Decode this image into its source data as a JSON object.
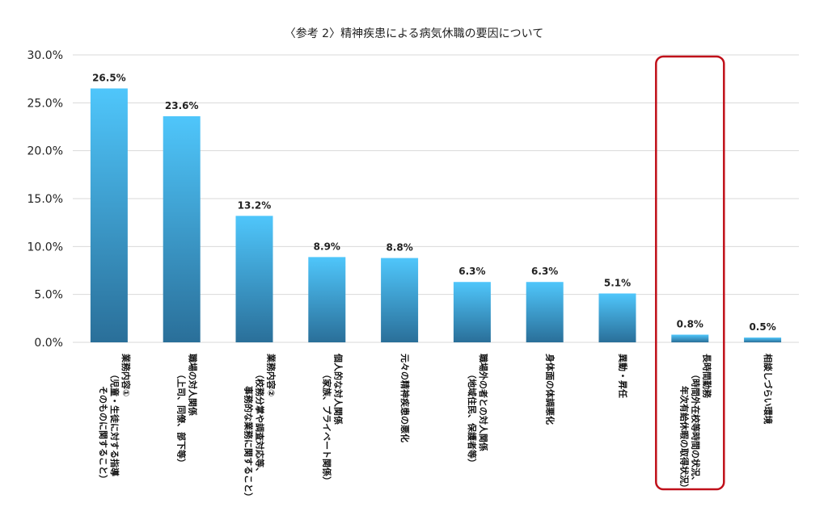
{
  "chart_data": {
    "type": "bar",
    "title": "〈参考 2〉精神疾患による病気休職の要因について",
    "xlabel": "",
    "ylabel": "",
    "ylim": [
      0,
      30
    ],
    "y_ticks": [
      "0.0%",
      "5.0%",
      "10.0%",
      "15.0%",
      "20.0%",
      "25.0%",
      "30.0%"
    ],
    "grid": true,
    "categories": [
      [
        "業務内容①",
        "（児童・生徒に対する指導",
        "そのものに関すること）"
      ],
      [
        "職場の対人関係",
        "（上司、同僚、部下等）"
      ],
      [
        "業務内容②",
        "（校務分掌や調査対応等、",
        "事務的な業務に関すること）"
      ],
      [
        "個人的な対人関係",
        "（家族、プライベート関係）"
      ],
      [
        "元々の精神疾患の悪化"
      ],
      [
        "職場外の者との対人関係",
        "（地域住民、保護者等）"
      ],
      [
        "身体面の体調悪化"
      ],
      [
        "異動・昇任"
      ],
      [
        "長時間勤務",
        "（時間外在校等時間の状況、",
        "年次有給休暇の取得状況）"
      ],
      [
        "相談しづらい環境"
      ]
    ],
    "values": [
      26.5,
      23.6,
      13.2,
      8.9,
      8.8,
      6.3,
      6.3,
      5.1,
      0.8,
      0.5
    ],
    "value_labels": [
      "26.5%",
      "23.6%",
      "13.2%",
      "8.9%",
      "8.8%",
      "6.3%",
      "6.3%",
      "5.1%",
      "0.8%",
      "0.5%"
    ],
    "highlighted_index": 8,
    "colors": {
      "bar_top": "#4fc6fb",
      "bar_bottom": "#2a6f99",
      "grid": "#d9d9d9",
      "highlight": "#c0101a"
    }
  }
}
